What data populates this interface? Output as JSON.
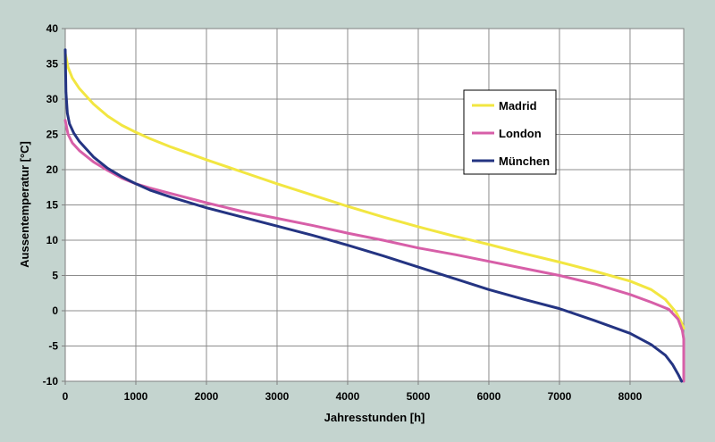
{
  "chart_data": {
    "type": "line",
    "xlabel": "Jahresstunden [h]",
    "ylabel": "Aussentemperatur [°C]",
    "xlim": [
      0,
      8760
    ],
    "ylim": [
      -10,
      40
    ],
    "xticks": [
      0,
      1000,
      2000,
      3000,
      4000,
      5000,
      6000,
      7000,
      8000
    ],
    "yticks": [
      -10,
      -5,
      0,
      5,
      10,
      15,
      20,
      25,
      30,
      35,
      40
    ],
    "grid": true,
    "legend_position": "right",
    "series": [
      {
        "name": "Madrid",
        "color": "#f2e641",
        "points": [
          [
            0,
            36.5
          ],
          [
            40,
            34.5
          ],
          [
            100,
            33.0
          ],
          [
            200,
            31.5
          ],
          [
            400,
            29.3
          ],
          [
            600,
            27.6
          ],
          [
            800,
            26.3
          ],
          [
            1000,
            25.3
          ],
          [
            1200,
            24.4
          ],
          [
            1500,
            23.2
          ],
          [
            2000,
            21.4
          ],
          [
            2500,
            19.7
          ],
          [
            3000,
            18.0
          ],
          [
            3500,
            16.4
          ],
          [
            4000,
            14.8
          ],
          [
            4500,
            13.3
          ],
          [
            5000,
            11.9
          ],
          [
            5500,
            10.6
          ],
          [
            6000,
            9.4
          ],
          [
            6500,
            8.1
          ],
          [
            7000,
            6.9
          ],
          [
            7500,
            5.6
          ],
          [
            8000,
            4.2
          ],
          [
            8300,
            3.0
          ],
          [
            8500,
            1.6
          ],
          [
            8650,
            -0.2
          ],
          [
            8720,
            -1.5
          ],
          [
            8760,
            -2.5
          ]
        ]
      },
      {
        "name": "London",
        "color": "#d75fa8",
        "points": [
          [
            0,
            27.0
          ],
          [
            40,
            25.0
          ],
          [
            100,
            23.8
          ],
          [
            200,
            22.7
          ],
          [
            400,
            21.1
          ],
          [
            600,
            19.9
          ],
          [
            800,
            18.8
          ],
          [
            1000,
            18.0
          ],
          [
            1200,
            17.4
          ],
          [
            1500,
            16.6
          ],
          [
            2000,
            15.3
          ],
          [
            2500,
            14.1
          ],
          [
            3000,
            13.1
          ],
          [
            3500,
            12.1
          ],
          [
            4000,
            11.0
          ],
          [
            4500,
            10.0
          ],
          [
            5000,
            8.9
          ],
          [
            5500,
            8.0
          ],
          [
            6000,
            7.0
          ],
          [
            6500,
            6.0
          ],
          [
            7000,
            5.0
          ],
          [
            7500,
            3.8
          ],
          [
            8000,
            2.3
          ],
          [
            8300,
            1.2
          ],
          [
            8550,
            0.2
          ],
          [
            8680,
            -1.2
          ],
          [
            8740,
            -2.8
          ],
          [
            8760,
            -4.0
          ],
          [
            8760,
            -10.0
          ]
        ]
      },
      {
        "name": "München",
        "color": "#243482",
        "points": [
          [
            0,
            37.0
          ],
          [
            10,
            31.0
          ],
          [
            30,
            28.0
          ],
          [
            60,
            26.5
          ],
          [
            120,
            25.2
          ],
          [
            200,
            24.0
          ],
          [
            400,
            21.8
          ],
          [
            600,
            20.2
          ],
          [
            800,
            19.0
          ],
          [
            1000,
            18.0
          ],
          [
            1200,
            17.1
          ],
          [
            1500,
            16.1
          ],
          [
            2000,
            14.6
          ],
          [
            2500,
            13.3
          ],
          [
            3000,
            12.0
          ],
          [
            3500,
            10.7
          ],
          [
            4000,
            9.3
          ],
          [
            4500,
            7.8
          ],
          [
            5000,
            6.2
          ],
          [
            5500,
            4.6
          ],
          [
            6000,
            3.0
          ],
          [
            6500,
            1.6
          ],
          [
            7000,
            0.3
          ],
          [
            7500,
            -1.4
          ],
          [
            8000,
            -3.2
          ],
          [
            8300,
            -4.8
          ],
          [
            8500,
            -6.3
          ],
          [
            8600,
            -7.6
          ],
          [
            8680,
            -9.0
          ],
          [
            8730,
            -10.0
          ]
        ]
      }
    ]
  }
}
